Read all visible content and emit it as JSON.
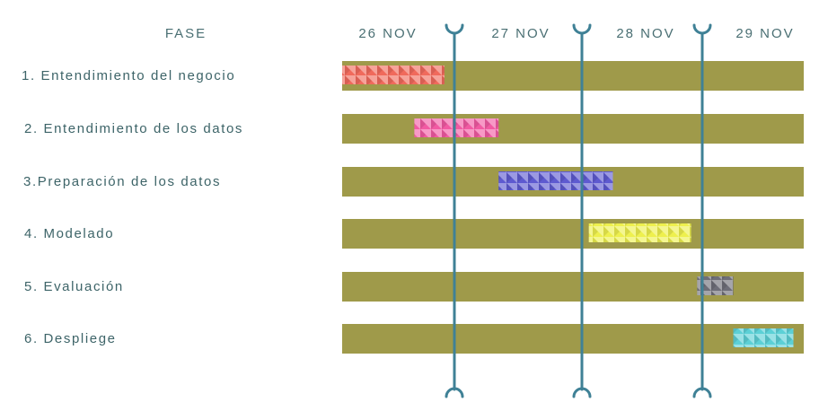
{
  "chart_data": {
    "type": "gantt",
    "header": {
      "phase_label": "FASE"
    },
    "dates": [
      "26 NOV",
      "27 NOV",
      "28 NOV",
      "29 NOV"
    ],
    "phases": [
      {
        "label": "1. Entendimiento del negocio",
        "start": 0.0,
        "end": 0.85,
        "color": "#f06a5c"
      },
      {
        "label": "2. Entendimiento de los datos",
        "start": 0.6,
        "end": 1.3,
        "color": "#f25aa3"
      },
      {
        "label": "3.Preparación de los datos",
        "start": 1.3,
        "end": 2.25,
        "color": "#5e5ad0"
      },
      {
        "label": "4. Modelado",
        "start": 2.05,
        "end": 2.9,
        "color": "#eef04e"
      },
      {
        "label": "5. Evaluación",
        "start": 2.95,
        "end": 3.25,
        "color": "#6e6e78"
      },
      {
        "label": "6. Despliege",
        "start": 3.25,
        "end": 3.75,
        "color": "#5cd0d6"
      }
    ],
    "colors": {
      "track": "#9f9a4a",
      "divider": "#3f8196",
      "text": "#3d6468"
    }
  }
}
